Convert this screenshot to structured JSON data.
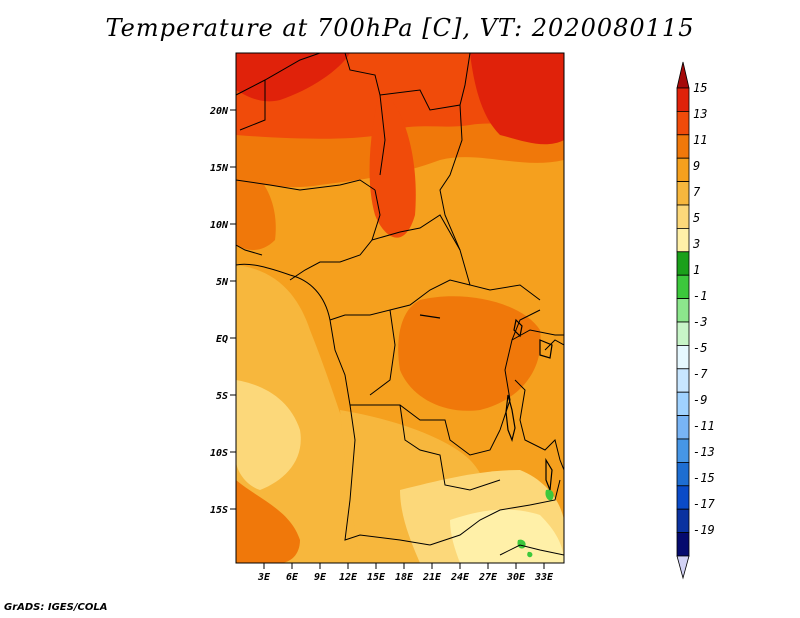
{
  "title": "Temperature at 700hPa [C], VT: 2020080115",
  "footer": "GrADS: IGES/COLA",
  "map": {
    "lat_labels": [
      "20N",
      "15N",
      "10N",
      "5N",
      "EQ",
      "5S",
      "10S",
      "15S"
    ],
    "lon_labels": [
      "3E",
      "6E",
      "9E",
      "12E",
      "15E",
      "18E",
      "21E",
      "24E",
      "27E",
      "30E",
      "33E"
    ]
  },
  "colorbar": {
    "labels": [
      "15",
      "13",
      "11",
      "9",
      "7",
      "5",
      "3",
      "1",
      "-1",
      "-3",
      "-5",
      "-7",
      "-9",
      "-11",
      "-13",
      "-15",
      "-17",
      "-19"
    ],
    "colors": [
      "#a50a0a",
      "#e0220a",
      "#f04b0a",
      "#f0780a",
      "#f5a01e",
      "#f7b73d",
      "#fcd87a",
      "#fff0a8",
      "#1aa01a",
      "#3cc83c",
      "#8ce68c",
      "#c8f5c8",
      "#e6f8ff",
      "#c8e6ff",
      "#a0d2ff",
      "#78b4f5",
      "#4696e6",
      "#1e6ed2",
      "#0a4bc8",
      "#0a32a0",
      "#050a6e",
      "#d2d2f5"
    ]
  }
}
